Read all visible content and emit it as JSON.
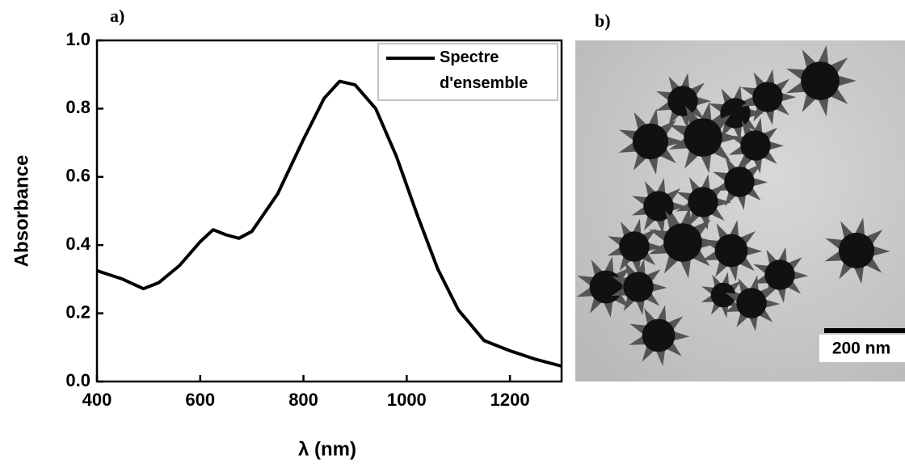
{
  "chart_data": {
    "type": "line",
    "x_label": "λ (nm)",
    "y_label": "Absorbance",
    "x": [
      400,
      450,
      490,
      520,
      560,
      600,
      625,
      650,
      675,
      700,
      750,
      800,
      840,
      870,
      900,
      940,
      980,
      1020,
      1060,
      1100,
      1150,
      1200,
      1250,
      1300
    ],
    "series": [
      {
        "name": "Spectre d'ensemble",
        "color": "#000000",
        "values": [
          0.325,
          0.3,
          0.272,
          0.29,
          0.34,
          0.41,
          0.445,
          0.43,
          0.42,
          0.44,
          0.55,
          0.71,
          0.83,
          0.88,
          0.87,
          0.8,
          0.66,
          0.49,
          0.33,
          0.21,
          0.12,
          0.09,
          0.065,
          0.045
        ]
      }
    ],
    "xlim": [
      400,
      1300
    ],
    "xticks": [
      400,
      600,
      800,
      1000,
      1200
    ],
    "ylim": [
      0,
      1
    ],
    "yticks": [
      {
        "value": 0,
        "label": "0.0"
      },
      0.2,
      0.4,
      0.6,
      0.8,
      {
        "value": 1,
        "label": "1.0"
      }
    ],
    "legend": "upper right"
  },
  "panels": {
    "a": "a)",
    "b": "b)"
  },
  "image": {
    "scale_bar": "200 nm"
  }
}
